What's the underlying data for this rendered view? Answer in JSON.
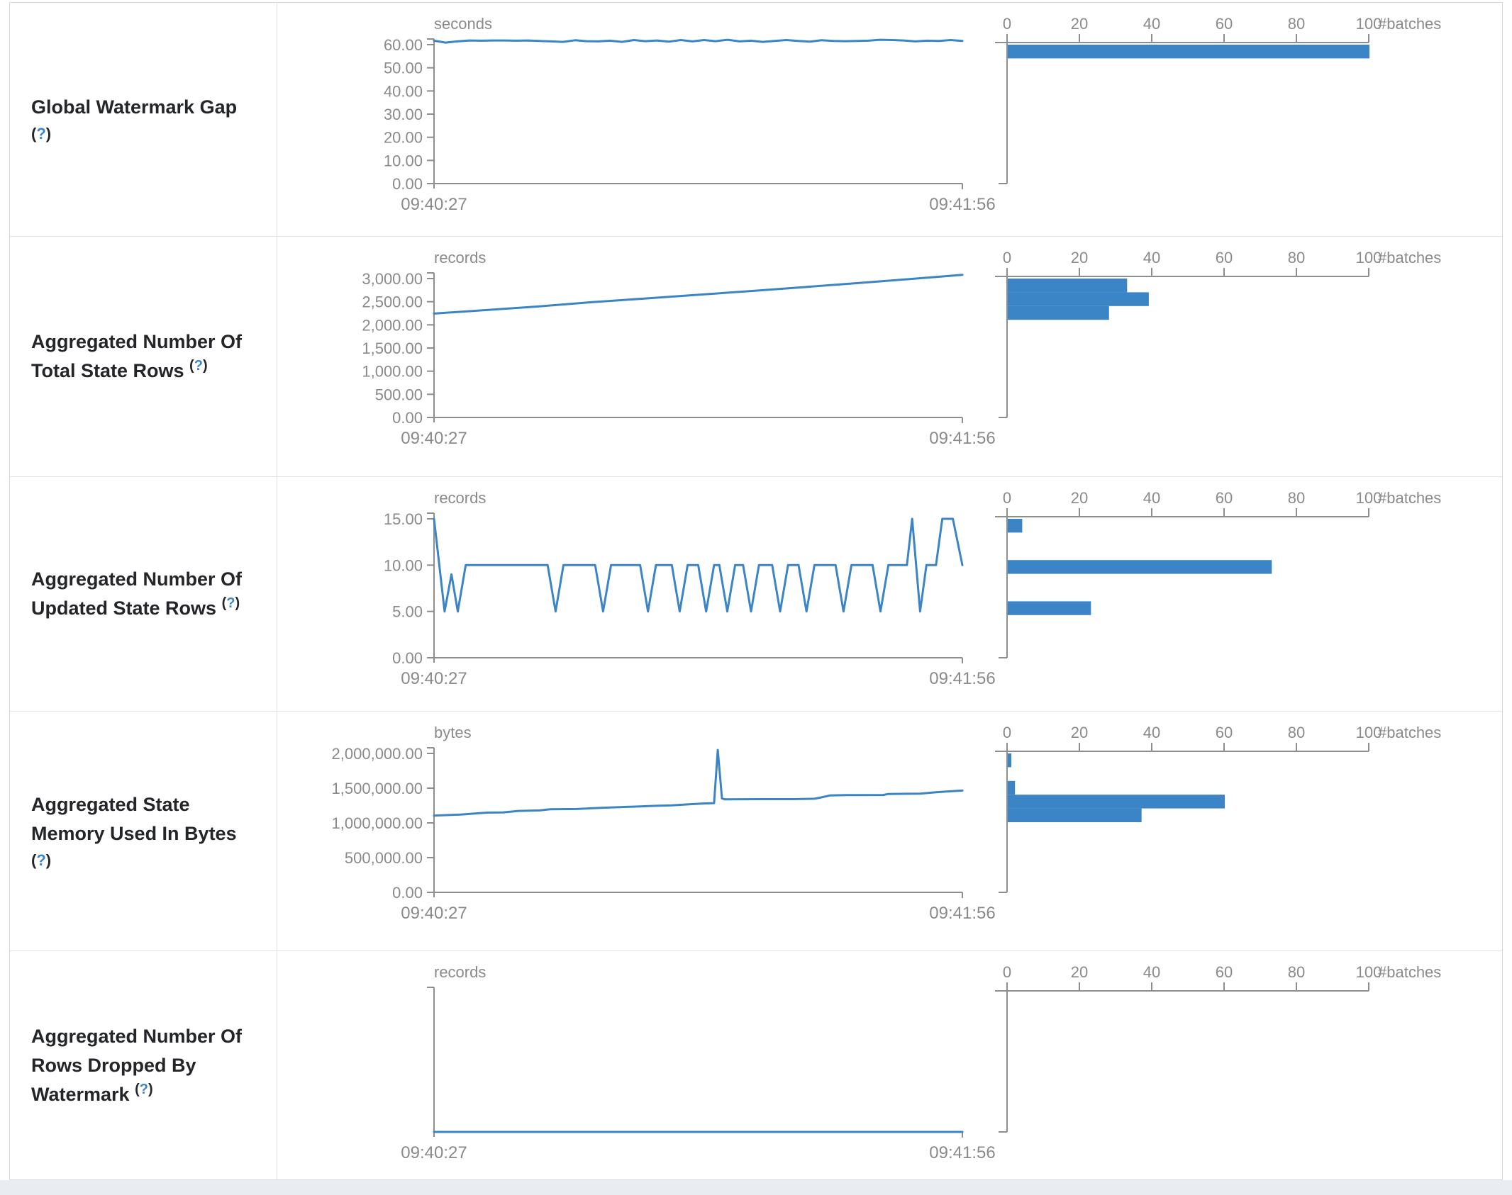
{
  "help": {
    "open": "(",
    "mark": "?",
    "close": ")"
  },
  "colors": {
    "accent": "#3b85c6",
    "axis": "#8e8e8e",
    "tick_text": "#8a8a8a",
    "help_blue": "#3d85c6"
  },
  "rows": [
    {
      "label": {
        "lines": [
          "Global Watermark Gap"
        ],
        "help_own_line": true
      },
      "chart_data": {
        "timeline": {
          "type": "line",
          "unit": "seconds",
          "ymax": 60,
          "yticks": [
            "60.00",
            "50.00",
            "40.00",
            "30.00",
            "20.00",
            "10.00",
            "0.00"
          ],
          "x_start": "09:40:27",
          "x_end": "09:41:56",
          "points": [
            [
              0,
              61.7
            ],
            [
              0.022,
              60.9
            ],
            [
              0.044,
              61.4
            ],
            [
              0.067,
              61.8
            ],
            [
              0.089,
              61.7
            ],
            [
              0.111,
              61.8
            ],
            [
              0.133,
              61.8
            ],
            [
              0.156,
              61.7
            ],
            [
              0.178,
              61.8
            ],
            [
              0.2,
              61.6
            ],
            [
              0.222,
              61.4
            ],
            [
              0.244,
              61.2
            ],
            [
              0.267,
              61.9
            ],
            [
              0.289,
              61.5
            ],
            [
              0.311,
              61.4
            ],
            [
              0.333,
              61.7
            ],
            [
              0.356,
              61.2
            ],
            [
              0.378,
              62.0
            ],
            [
              0.4,
              61.5
            ],
            [
              0.422,
              61.8
            ],
            [
              0.444,
              61.3
            ],
            [
              0.467,
              62.0
            ],
            [
              0.489,
              61.4
            ],
            [
              0.511,
              62.0
            ],
            [
              0.533,
              61.5
            ],
            [
              0.556,
              62.1
            ],
            [
              0.578,
              61.4
            ],
            [
              0.6,
              61.7
            ],
            [
              0.622,
              61.2
            ],
            [
              0.644,
              61.6
            ],
            [
              0.667,
              62.0
            ],
            [
              0.689,
              61.6
            ],
            [
              0.711,
              61.3
            ],
            [
              0.733,
              61.9
            ],
            [
              0.756,
              61.6
            ],
            [
              0.778,
              61.5
            ],
            [
              0.8,
              61.6
            ],
            [
              0.822,
              61.7
            ],
            [
              0.844,
              62.1
            ],
            [
              0.867,
              62.0
            ],
            [
              0.889,
              61.8
            ],
            [
              0.911,
              61.4
            ],
            [
              0.933,
              61.7
            ],
            [
              0.956,
              61.6
            ],
            [
              0.978,
              62.0
            ],
            [
              1,
              61.6
            ]
          ]
        },
        "histogram": {
          "type": "bar",
          "unit": "#batches",
          "xticks": [
            "0",
            "20",
            "40",
            "60",
            "80",
            "100"
          ],
          "xmax": 100,
          "bars": [
            {
              "slot": 0,
              "count": 100
            }
          ]
        }
      }
    },
    {
      "label": {
        "lines": [
          "Aggregated Number Of",
          "Total State Rows"
        ],
        "help_own_line": false
      },
      "chart_data": {
        "timeline": {
          "type": "line",
          "unit": "records",
          "ymax": 3000,
          "yticks": [
            "3,000.00",
            "2,500.00",
            "2,000.00",
            "1,500.00",
            "1,000.00",
            "500.00",
            "0.00"
          ],
          "x_start": "09:40:27",
          "x_end": "09:41:56",
          "points": [
            [
              0,
              2244
            ],
            [
              0.1,
              2320
            ],
            [
              0.2,
              2400
            ],
            [
              0.3,
              2490
            ],
            [
              0.4,
              2570
            ],
            [
              0.5,
              2650
            ],
            [
              0.6,
              2730
            ],
            [
              0.7,
              2815
            ],
            [
              0.8,
              2900
            ],
            [
              0.9,
              2990
            ],
            [
              1,
              3080
            ]
          ]
        },
        "histogram": {
          "type": "bar",
          "unit": "#batches",
          "xticks": [
            "0",
            "20",
            "40",
            "60",
            "80",
            "100"
          ],
          "xmax": 100,
          "bars": [
            {
              "slot": 0,
              "count": 33
            },
            {
              "slot": 1,
              "count": 39
            },
            {
              "slot": 2,
              "count": 28
            }
          ]
        }
      }
    },
    {
      "label": {
        "lines": [
          "Aggregated Number Of",
          "Updated State Rows"
        ],
        "help_own_line": false
      },
      "chart_data": {
        "timeline": {
          "type": "line",
          "unit": "records",
          "ymax": 15,
          "yticks": [
            "15.00",
            "10.00",
            "5.00",
            "0.00"
          ],
          "x_start": "09:40:27",
          "x_end": "09:41:56",
          "points": [
            [
              0,
              15
            ],
            [
              0.02,
              5
            ],
            [
              0.033,
              9
            ],
            [
              0.045,
              5
            ],
            [
              0.06,
              10
            ],
            [
              0.215,
              10
            ],
            [
              0.23,
              5
            ],
            [
              0.245,
              10
            ],
            [
              0.305,
              10
            ],
            [
              0.32,
              5
            ],
            [
              0.335,
              10
            ],
            [
              0.39,
              10
            ],
            [
              0.405,
              5
            ],
            [
              0.42,
              10
            ],
            [
              0.45,
              10
            ],
            [
              0.465,
              5
            ],
            [
              0.48,
              10
            ],
            [
              0.5,
              10
            ],
            [
              0.515,
              5
            ],
            [
              0.53,
              10
            ],
            [
              0.54,
              10
            ],
            [
              0.555,
              5
            ],
            [
              0.57,
              10
            ],
            [
              0.585,
              10
            ],
            [
              0.6,
              5
            ],
            [
              0.615,
              10
            ],
            [
              0.64,
              10
            ],
            [
              0.655,
              5
            ],
            [
              0.67,
              10
            ],
            [
              0.69,
              10
            ],
            [
              0.705,
              5
            ],
            [
              0.72,
              10
            ],
            [
              0.76,
              10
            ],
            [
              0.775,
              5
            ],
            [
              0.79,
              10
            ],
            [
              0.83,
              10
            ],
            [
              0.845,
              5
            ],
            [
              0.86,
              10
            ],
            [
              0.895,
              10
            ],
            [
              0.905,
              15
            ],
            [
              0.92,
              5
            ],
            [
              0.932,
              10
            ],
            [
              0.95,
              10
            ],
            [
              0.962,
              15
            ],
            [
              0.982,
              15
            ],
            [
              1,
              10
            ]
          ]
        },
        "histogram": {
          "type": "bar",
          "unit": "#batches",
          "xticks": [
            "0",
            "20",
            "40",
            "60",
            "80",
            "100"
          ],
          "xmax": 100,
          "bars": [
            {
              "slot": 0,
              "count": 4
            },
            {
              "slot": 3,
              "count": 73
            },
            {
              "slot": 6,
              "count": 23
            }
          ]
        }
      }
    },
    {
      "label": {
        "lines": [
          "Aggregated State",
          "Memory Used In Bytes"
        ],
        "help_own_line": true
      },
      "chart_data": {
        "timeline": {
          "type": "line",
          "unit": "bytes",
          "ymax": 2000000,
          "yticks": [
            "2,000,000.00",
            "1,500,000.00",
            "1,000,000.00",
            "500,000.00",
            "0.00"
          ],
          "x_start": "09:40:27",
          "x_end": "09:41:56",
          "points": [
            [
              0,
              1105000
            ],
            [
              0.05,
              1120000
            ],
            [
              0.1,
              1148000
            ],
            [
              0.13,
              1150000
            ],
            [
              0.16,
              1172000
            ],
            [
              0.2,
              1180000
            ],
            [
              0.22,
              1196000
            ],
            [
              0.27,
              1200000
            ],
            [
              0.32,
              1218000
            ],
            [
              0.37,
              1232000
            ],
            [
              0.42,
              1246000
            ],
            [
              0.45,
              1252000
            ],
            [
              0.48,
              1266000
            ],
            [
              0.51,
              1280000
            ],
            [
              0.53,
              1285000
            ],
            [
              0.537,
              2050000
            ],
            [
              0.545,
              1352000
            ],
            [
              0.55,
              1340000
            ],
            [
              0.62,
              1342000
            ],
            [
              0.68,
              1342000
            ],
            [
              0.72,
              1348000
            ],
            [
              0.73,
              1362000
            ],
            [
              0.75,
              1396000
            ],
            [
              0.78,
              1400000
            ],
            [
              0.85,
              1402000
            ],
            [
              0.86,
              1416000
            ],
            [
              0.92,
              1420000
            ],
            [
              0.95,
              1442000
            ],
            [
              0.98,
              1456000
            ],
            [
              1,
              1465000
            ]
          ]
        },
        "histogram": {
          "type": "bar",
          "unit": "#batches",
          "xticks": [
            "0",
            "20",
            "40",
            "60",
            "80",
            "100"
          ],
          "xmax": 100,
          "bars": [
            {
              "slot": 0,
              "count": 1
            },
            {
              "slot": 2,
              "count": 2
            },
            {
              "slot": 3,
              "count": 60
            },
            {
              "slot": 4,
              "count": 37
            }
          ]
        }
      }
    },
    {
      "label": {
        "lines": [
          "Aggregated Number Of",
          "Rows Dropped By",
          "Watermark"
        ],
        "help_own_line": false
      },
      "chart_data": {
        "timeline": {
          "type": "line",
          "unit": "records",
          "ymax": 1,
          "yticks": [],
          "x_start": "09:40:27",
          "x_end": "09:41:56",
          "points": [
            [
              0,
              0
            ],
            [
              1,
              0
            ]
          ]
        },
        "histogram": {
          "type": "bar",
          "unit": "#batches",
          "xticks": [
            "0",
            "20",
            "40",
            "60",
            "80",
            "100"
          ],
          "xmax": 100,
          "bars": []
        }
      }
    }
  ]
}
